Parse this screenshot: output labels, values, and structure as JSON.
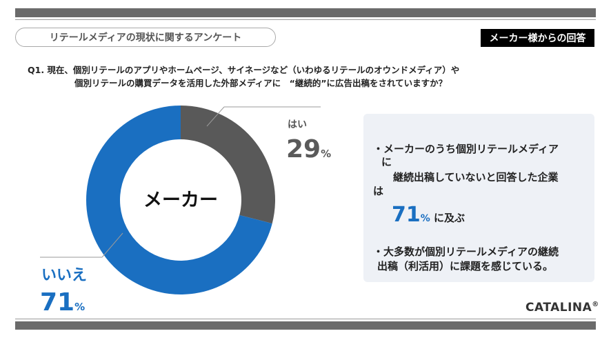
{
  "header": {
    "survey_title": "リテールメディアの現状に関するアンケート",
    "respondent_badge": "メーカー様からの回答"
  },
  "question": {
    "line1": "Q1. 現在、個別リテールのアプリやホームページ、サイネージなど（いわゆるリテールのオウンドメディア）や",
    "line2": "個別リテールの購買データを活用した外部メディアに　“継続的”に広告出稿をされていますか？"
  },
  "chart_data": {
    "type": "pie",
    "donut": true,
    "center_label": "メーカー",
    "categories": [
      "はい",
      "いいえ"
    ],
    "values": [
      29,
      71
    ],
    "unit": "%",
    "colors": [
      "#595959",
      "#1a6fc1"
    ]
  },
  "labels": {
    "yes_label": "はい",
    "yes_value": "29",
    "no_label": "いいえ",
    "no_value": "71",
    "pct_symbol": "%"
  },
  "summary": {
    "bullet_symbol": "・",
    "bullet1_lines": [
      "メーカーのうち個別リテールメディア",
      "に",
      "継続出稿していないと回答した企業",
      "は"
    ],
    "highlight_value": "71",
    "highlight_pct": "%",
    "highlight_suffix": " に及ぶ",
    "bullet2_lines": [
      "大多数が個別リテールメディアの継続",
      "出稿（利活用）に課題を感じている。"
    ]
  },
  "brand": {
    "name": "CATALINA",
    "mark": "®"
  },
  "colors": {
    "accent_blue": "#1a6fc1",
    "slice_gray": "#595959",
    "band_gray": "#6b6b6b",
    "box_bg": "#eef1f6"
  }
}
